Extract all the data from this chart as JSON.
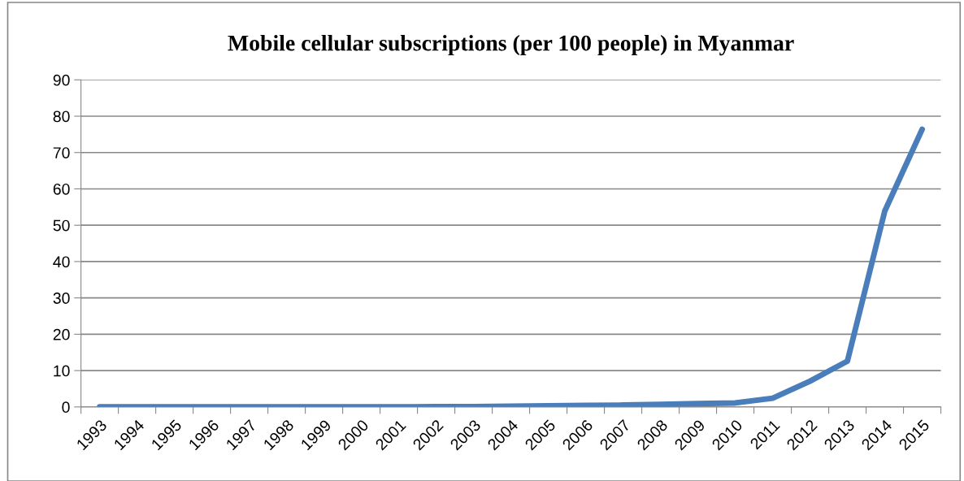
{
  "chart_data": {
    "type": "line",
    "title": "Mobile cellular subscriptions (per 100 people) in Myanmar",
    "categories": [
      "1993",
      "1994",
      "1995",
      "1996",
      "1997",
      "1998",
      "1999",
      "2000",
      "2001",
      "2002",
      "2003",
      "2004",
      "2005",
      "2006",
      "2007",
      "2008",
      "2009",
      "2010",
      "2011",
      "2012",
      "2013",
      "2014",
      "2015"
    ],
    "series": [
      {
        "color": "#4a7ebb",
        "values": [
          0,
          0,
          0,
          0,
          0,
          0,
          0,
          0,
          0,
          0.1,
          0.1,
          0.2,
          0.3,
          0.4,
          0.5,
          0.7,
          0.9,
          1.1,
          2.4,
          7.1,
          12.6,
          53.9,
          76.4
        ]
      }
    ],
    "ylim": [
      0,
      90
    ],
    "yticks": [
      0,
      10,
      20,
      30,
      40,
      50,
      60,
      70,
      80,
      90
    ],
    "grid": "y",
    "marker": "none",
    "line_style": "solid"
  }
}
